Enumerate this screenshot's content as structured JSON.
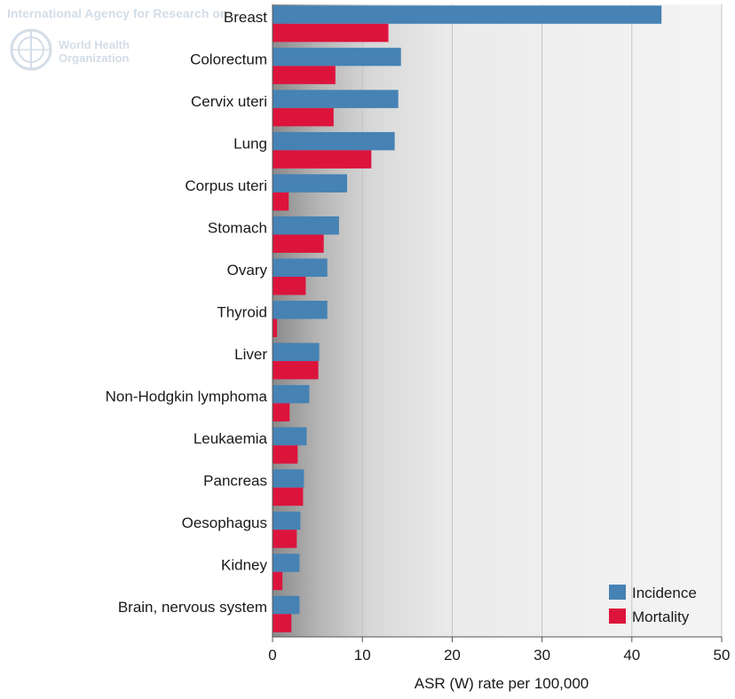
{
  "watermark": {
    "agency": "International Agency for Research on",
    "org_line1": "World Health",
    "org_line2": "Organization"
  },
  "chart_data": {
    "type": "bar",
    "orientation": "horizontal",
    "title": "",
    "xlabel": "ASR (W) rate per 100,000",
    "ylabel": "",
    "xlim": [
      0,
      50
    ],
    "xticks": [
      0,
      10,
      20,
      30,
      40,
      50
    ],
    "grid": true,
    "legend_position": "bottom-right",
    "categories": [
      "Breast",
      "Colorectum",
      "Cervix uteri",
      "Lung",
      "Corpus uteri",
      "Stomach",
      "Ovary",
      "Thyroid",
      "Liver",
      "Non-Hodgkin lymphoma",
      "Leukaemia",
      "Pancreas",
      "Oesophagus",
      "Kidney",
      "Brain, nervous system"
    ],
    "series": [
      {
        "name": "Incidence",
        "color": "#4682b4",
        "values": [
          43.3,
          14.3,
          14.0,
          13.6,
          8.3,
          7.4,
          6.1,
          6.1,
          5.2,
          4.1,
          3.8,
          3.5,
          3.1,
          3.0,
          3.0
        ]
      },
      {
        "name": "Mortality",
        "color": "#dc143c",
        "values": [
          12.9,
          7.0,
          6.8,
          11.0,
          1.8,
          5.7,
          3.7,
          0.5,
          5.1,
          1.9,
          2.8,
          3.4,
          2.7,
          1.1,
          2.1
        ]
      }
    ]
  }
}
